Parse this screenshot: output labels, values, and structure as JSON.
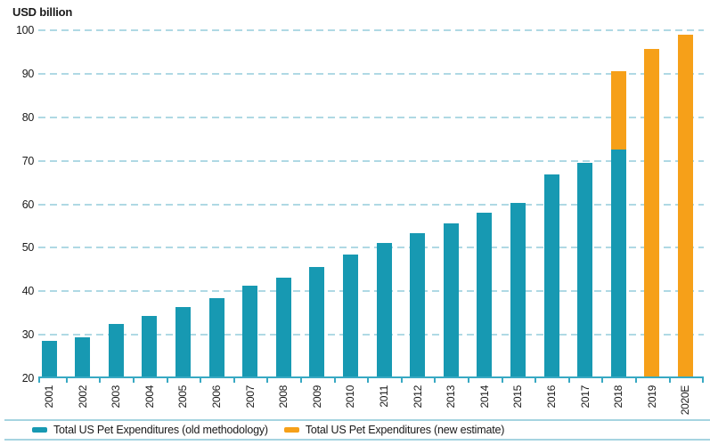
{
  "title": "USD billion",
  "colors": {
    "teal": "#1799B2",
    "orange": "#F6A019",
    "gridline": "#AFD9E4",
    "axis": "#38A9C3",
    "legend_border": "#A6D4E0",
    "text": "#1A1A1A"
  },
  "legend": {
    "items": [
      {
        "label": "Total US Pet Expenditures (old methodology)",
        "color": "teal"
      },
      {
        "label": "Total US Pet Expenditures (new estimate)",
        "color": "orange"
      }
    ]
  },
  "chart_data": {
    "type": "bar",
    "stacked": true,
    "title": "USD billion",
    "xlabel": "",
    "ylabel": "USD billion",
    "ylim": [
      20,
      100
    ],
    "ytick_step": 10,
    "yticks": [
      20,
      30,
      40,
      50,
      60,
      70,
      80,
      90,
      100
    ],
    "grid": "horizontal-dashed",
    "legend_position": "bottom",
    "categories": [
      "2001",
      "2002",
      "2003",
      "2004",
      "2005",
      "2006",
      "2007",
      "2008",
      "2009",
      "2010",
      "2011",
      "2012",
      "2013",
      "2014",
      "2015",
      "2016",
      "2017",
      "2018",
      "2019",
      "2020E"
    ],
    "series": [
      {
        "name": "Total US Pet Expenditures (old methodology)",
        "color": "teal",
        "values": [
          28.5,
          29.5,
          32.4,
          34.4,
          36.3,
          38.5,
          41.2,
          43.2,
          45.5,
          48.4,
          51.0,
          53.3,
          55.7,
          58.0,
          60.3,
          66.8,
          69.5,
          72.6,
          null,
          null
        ]
      },
      {
        "name": "Total US Pet Expenditures (new estimate)",
        "color": "orange",
        "values": [
          null,
          null,
          null,
          null,
          null,
          null,
          null,
          null,
          null,
          null,
          null,
          null,
          null,
          null,
          null,
          null,
          null,
          90.5,
          95.7,
          99.0
        ]
      }
    ]
  }
}
